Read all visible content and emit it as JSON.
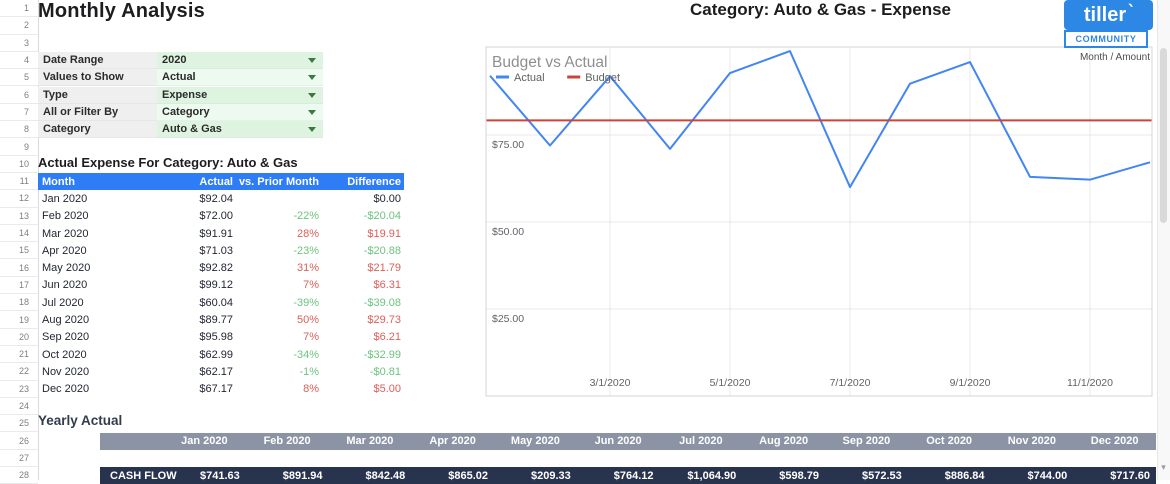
{
  "gutter": {
    "rows": [
      1,
      2,
      3,
      4,
      5,
      6,
      7,
      8,
      9,
      10,
      11,
      12,
      13,
      14,
      15,
      16,
      17,
      18,
      19,
      20,
      21,
      22,
      23,
      24,
      25,
      26,
      27,
      28
    ]
  },
  "header": {
    "title": "Monthly Analysis"
  },
  "filters": {
    "items": [
      {
        "label": "Date Range",
        "value": "2020"
      },
      {
        "label": "Values to Show",
        "value": "Actual"
      },
      {
        "label": "Type",
        "value": "Expense"
      },
      {
        "label": "All or Filter By",
        "value": "Category"
      },
      {
        "label": "Category",
        "value": "Auto & Gas"
      }
    ]
  },
  "expense_table": {
    "title": "Actual Expense For Category: Auto & Gas",
    "columns": [
      "Month",
      "Actual",
      "vs. Prior Month",
      "Difference"
    ],
    "rows": [
      {
        "month": "Jan 2020",
        "actual": "$92.04",
        "pct": "",
        "diff": "$0.00",
        "tone": "neutral"
      },
      {
        "month": "Feb 2020",
        "actual": "$72.00",
        "pct": "-22%",
        "diff": "-$20.04",
        "tone": "green"
      },
      {
        "month": "Mar 2020",
        "actual": "$91.91",
        "pct": "28%",
        "diff": "$19.91",
        "tone": "red"
      },
      {
        "month": "Apr 2020",
        "actual": "$71.03",
        "pct": "-23%",
        "diff": "-$20.88",
        "tone": "green"
      },
      {
        "month": "May 2020",
        "actual": "$92.82",
        "pct": "31%",
        "diff": "$21.79",
        "tone": "red"
      },
      {
        "month": "Jun 2020",
        "actual": "$99.12",
        "pct": "7%",
        "diff": "$6.31",
        "tone": "red"
      },
      {
        "month": "Jul 2020",
        "actual": "$60.04",
        "pct": "-39%",
        "diff": "-$39.08",
        "tone": "green"
      },
      {
        "month": "Aug 2020",
        "actual": "$89.77",
        "pct": "50%",
        "diff": "$29.73",
        "tone": "red"
      },
      {
        "month": "Sep 2020",
        "actual": "$95.98",
        "pct": "7%",
        "diff": "$6.21",
        "tone": "red"
      },
      {
        "month": "Oct 2020",
        "actual": "$62.99",
        "pct": "-34%",
        "diff": "-$32.99",
        "tone": "green"
      },
      {
        "month": "Nov 2020",
        "actual": "$62.17",
        "pct": "-1%",
        "diff": "-$0.81",
        "tone": "green"
      },
      {
        "month": "Dec 2020",
        "actual": "$67.17",
        "pct": "8%",
        "diff": "$5.00",
        "tone": "red"
      }
    ]
  },
  "chart_header": {
    "title": "Category: Auto & Gas - Expense",
    "axis_note": "Month / Amount"
  },
  "chart_data": {
    "type": "line",
    "title": "Budget vs Actual",
    "categories": [
      "Jan 2020",
      "Feb 2020",
      "Mar 2020",
      "Apr 2020",
      "May 2020",
      "Jun 2020",
      "Jul 2020",
      "Aug 2020",
      "Sep 2020",
      "Oct 2020",
      "Nov 2020",
      "Dec 2020"
    ],
    "series": [
      {
        "name": "Actual",
        "color": "#4285f4",
        "values": [
          92.04,
          72.0,
          91.91,
          71.03,
          92.82,
          99.12,
          60.04,
          89.77,
          95.98,
          62.99,
          62.17,
          67.17
        ]
      },
      {
        "name": "Budget",
        "color": "#cc4438",
        "values": [
          79.2,
          79.2,
          79.2,
          79.2,
          79.2,
          79.2,
          79.2,
          79.2,
          79.2,
          79.2,
          79.2,
          79.2
        ]
      }
    ],
    "x_ticks": [
      {
        "index": 2,
        "label": "3/1/2020"
      },
      {
        "index": 4,
        "label": "5/1/2020"
      },
      {
        "index": 6,
        "label": "7/1/2020"
      },
      {
        "index": 8,
        "label": "9/1/2020"
      },
      {
        "index": 10,
        "label": "11/1/2020"
      }
    ],
    "y_ticks": [
      {
        "value": 25,
        "label": "$25.00"
      },
      {
        "value": 50,
        "label": "$50.00"
      },
      {
        "value": 75,
        "label": "$75.00"
      }
    ],
    "ylim": [
      0,
      100.3
    ],
    "grid": true,
    "legend_position": "top-left"
  },
  "logo": {
    "brand": "tiller",
    "accent": "`",
    "community": "COMMUNITY"
  },
  "yearly_table": {
    "title": "Yearly Actual",
    "columns": [
      "Jan 2020",
      "Feb 2020",
      "Mar 2020",
      "Apr 2020",
      "May 2020",
      "Jun 2020",
      "Jul 2020",
      "Aug 2020",
      "Sep 2020",
      "Oct 2020",
      "Nov 2020",
      "Dec 2020"
    ],
    "rows": [
      {
        "label": "CASH FLOW",
        "values": [
          "$741.63",
          "$891.94",
          "$842.48",
          "$865.02",
          "$209.33",
          "$764.12",
          "$1,064.90",
          "$598.79",
          "$572.53",
          "$886.84",
          "$744.00",
          "$717.60"
        ]
      }
    ]
  },
  "colors": {
    "table_header_blue": "#2e7df6",
    "red": "#dd5f5a",
    "green": "#6cc47e",
    "neutral": "#1f2430",
    "yearly_header_gray": "#8b93a5",
    "cashflow_navy": "#28334e",
    "actual_line": "#4285f4",
    "budget_line": "#cc4438",
    "logo_blue": "#2d87e4",
    "filter_green_dark": "#def4e0",
    "filter_green_light": "#edfaef"
  }
}
